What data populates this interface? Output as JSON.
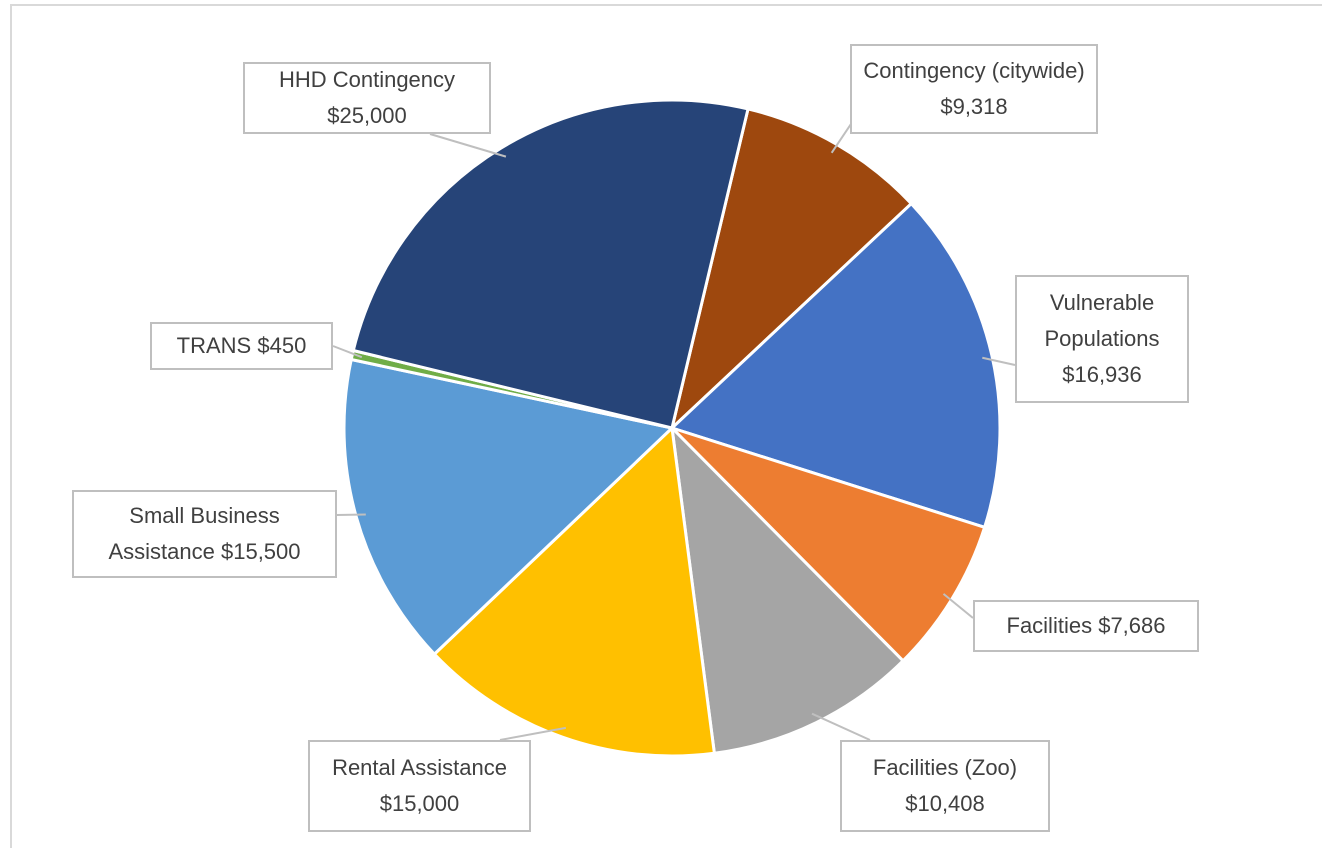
{
  "chart_data": {
    "type": "pie",
    "categories": [
      "Contingency (citywide)",
      "Vulnerable Populations",
      "Facilities",
      "Facilities (Zoo)",
      "Rental Assistance",
      "Small Business Assistance",
      "TRANS",
      "HHD Contingency"
    ],
    "values": [
      9318,
      16936,
      7686,
      10408,
      15000,
      15500,
      450,
      25000
    ],
    "value_labels": [
      "$9,318",
      "$16,936",
      "$7,686",
      "$10,408",
      "$15,000",
      "$15,500",
      "$450",
      "$25,000"
    ],
    "colors": [
      "#9e480e",
      "#4472c4",
      "#ed7d31",
      "#a5a5a5",
      "#ffc000",
      "#5b9bd5",
      "#70ad47",
      "#264478"
    ]
  }
}
